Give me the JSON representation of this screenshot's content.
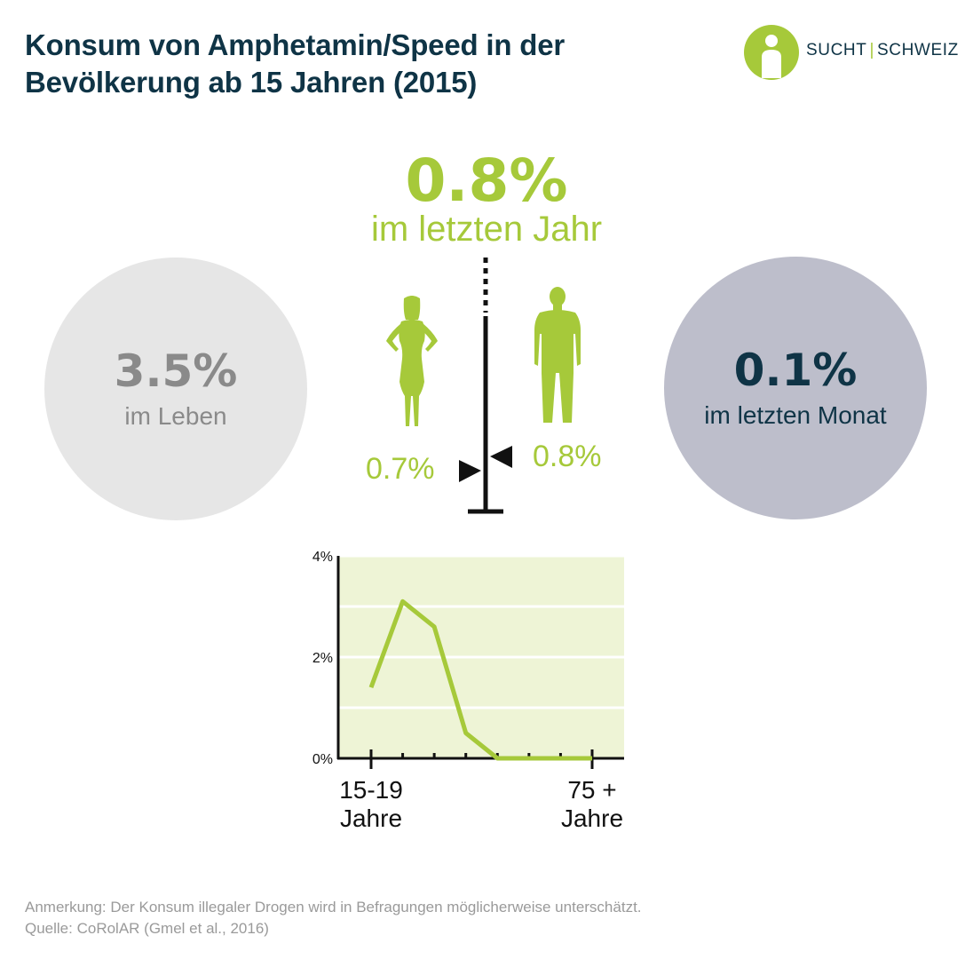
{
  "title": {
    "line1": "Konsum von Amphetamin/Speed in der",
    "line2": "Bevölkerung ab 15 Jahren (2015)"
  },
  "logo": {
    "left": "SUCHT",
    "separator": "|",
    "right": "SCHWEIZ",
    "colors": {
      "green": "#a6c93a",
      "navy": "#0f3446"
    }
  },
  "last_year": {
    "value": "0.8%",
    "label": "im letzten Jahr"
  },
  "lifetime": {
    "value": "3.5%",
    "label": "im Leben"
  },
  "last_month": {
    "value": "0.1%",
    "label": "im letzten Monat"
  },
  "gender": {
    "female": {
      "icon": "female-silhouette-icon",
      "value": "0.7%"
    },
    "male": {
      "icon": "male-silhouette-icon",
      "value": "0.8%"
    }
  },
  "chart_data": {
    "type": "line",
    "x_labels": [
      {
        "line1": "15-19",
        "line2": "Jahre"
      },
      {
        "line1": "75 +",
        "line2": "Jahre"
      }
    ],
    "y_ticks": [
      "4%",
      "2%",
      "0%"
    ],
    "ylim": [
      0,
      4
    ],
    "series": [
      {
        "values": [
          1.4,
          3.1,
          2.6,
          0.5,
          0,
          0,
          0,
          0
        ]
      }
    ],
    "colors": {
      "line": "#a6c93a",
      "background": "#eef4d6",
      "grid": "#ffffff"
    }
  },
  "footer": {
    "note": "Anmerkung: Der Konsum illegaler Drogen wird in Befragungen möglicherweise unterschätzt.",
    "source": "Quelle: CoRolAR (Gmel et al., 2016)"
  }
}
